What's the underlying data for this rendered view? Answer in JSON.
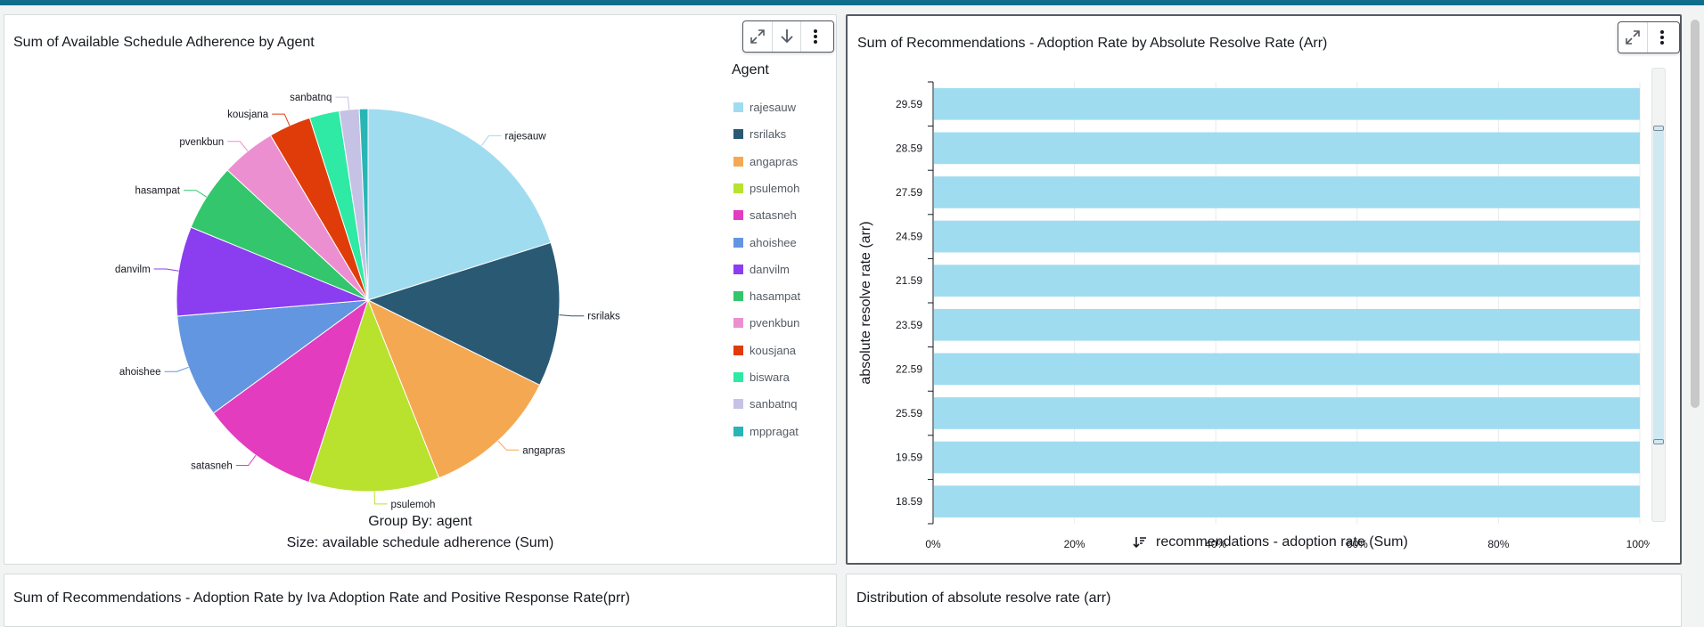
{
  "panels": {
    "pie": {
      "title": "Sum of Available Schedule Adherence by Agent",
      "group_by": "Group By: agent",
      "size": "Size: available schedule adherence (Sum)",
      "legend_title": "Agent",
      "legend": [
        "rajesauw",
        "rsrilaks",
        "angapras",
        "psulemoh",
        "satasneh",
        "ahoishee",
        "danvilm",
        "hasampat",
        "pvenkbun",
        "kousjana",
        "biswara",
        "sanbatnq",
        "mppragat"
      ],
      "slice_labels": [
        "rajesauw",
        "rsrilaks",
        "angapras",
        "psulemoh",
        "satasneh",
        "ahoishee",
        "danvilm",
        "hasampat",
        "pvenkbun",
        "kousjana",
        "sanbatnq"
      ]
    },
    "bar": {
      "title": "Sum of Recommendations - Adoption Rate by Absolute Resolve Rate (Arr)",
      "xlabel": "recommendations - adoption rate (Sum)",
      "ylabel": "absolute resolve rate (arr)"
    },
    "bottom_left": {
      "title": "Sum of Recommendations - Adoption Rate by Iva Adoption Rate and Positive Response Rate(prr)"
    },
    "bottom_right": {
      "title": "Distribution of absolute resolve rate (arr)"
    }
  },
  "colors": {
    "rajesauw": "#a0dcf0",
    "rsrilaks": "#2a5974",
    "angapras": "#f5a852",
    "psulemoh": "#b8e22e",
    "satasneh": "#e33cbf",
    "ahoishee": "#6396e0",
    "danvilm": "#8b3df0",
    "hasampat": "#33c66c",
    "pvenkbun": "#ec8fd0",
    "kousjana": "#e03c0a",
    "biswara": "#2eeaa4",
    "sanbatnq": "#c6c2e6",
    "mppragat": "#2ab5b5",
    "bar": "#a0dcf0"
  },
  "icons": [
    "expand-icon",
    "download-icon",
    "more-options-icon",
    "sort-descending-icon"
  ],
  "chart_data": [
    {
      "type": "pie",
      "title": "Sum of Available Schedule Adherence by Agent",
      "categories": [
        "rajesauw",
        "rsrilaks",
        "angapras",
        "psulemoh",
        "satasneh",
        "ahoishee",
        "danvilm",
        "hasampat",
        "pvenkbun",
        "kousjana",
        "biswara",
        "sanbatnq",
        "mppragat"
      ],
      "values": [
        19.2,
        11.6,
        11.1,
        10.5,
        9.5,
        8.3,
        7.2,
        5.4,
        4.4,
        3.4,
        2.4,
        1.6,
        0.7
      ],
      "legend_position": "right"
    },
    {
      "type": "bar",
      "orientation": "horizontal",
      "title": "Sum of Recommendations - Adoption Rate by Absolute Resolve Rate (Arr)",
      "categories": [
        "29.59",
        "28.59",
        "27.59",
        "24.59",
        "21.59",
        "23.59",
        "22.59",
        "25.59",
        "19.59",
        "18.59"
      ],
      "values": [
        100,
        100,
        100,
        100,
        100,
        100,
        100,
        100,
        100,
        100
      ],
      "xlabel": "recommendations - adoption rate (Sum)",
      "ylabel": "absolute resolve rate (arr)",
      "xticks": [
        "0%",
        "20%",
        "40%",
        "60%",
        "80%",
        "100%"
      ],
      "xlim": [
        0,
        100
      ],
      "grid": true
    }
  ]
}
